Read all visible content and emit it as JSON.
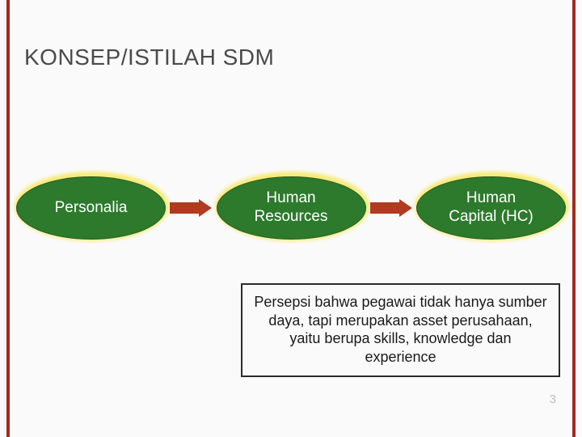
{
  "slide": {
    "background_color": "#fafafa",
    "border_color": "#a12a20",
    "title": "KONSEP/ISTILAH SDM",
    "title_color": "#4a4a4a",
    "title_fontsize": 28
  },
  "flow": {
    "type": "flowchart",
    "node_fill": "#2d7a2d",
    "node_glow": "#f6e96b",
    "node_text_color": "#ffffff",
    "node_fontsize": 19,
    "arrow_color": "#b23a20",
    "nodes": [
      {
        "id": "personalia",
        "label": "Personalia"
      },
      {
        "id": "hr",
        "label": "Human\nResources"
      },
      {
        "id": "hc",
        "label": "Human\nCapital (HC)"
      }
    ],
    "edges": [
      {
        "from": "personalia",
        "to": "hr"
      },
      {
        "from": "hr",
        "to": "hc"
      }
    ]
  },
  "caption": {
    "text": "Persepsi bahwa pegawai tidak hanya sumber daya, tapi merupakan asset perusahaan, yaitu berupa skills, knowledge dan experience",
    "border_color": "#2b2b2b",
    "text_color": "#1a1a1a",
    "fontsize": 18,
    "background_color": "#fafafa"
  },
  "page_number": "3"
}
